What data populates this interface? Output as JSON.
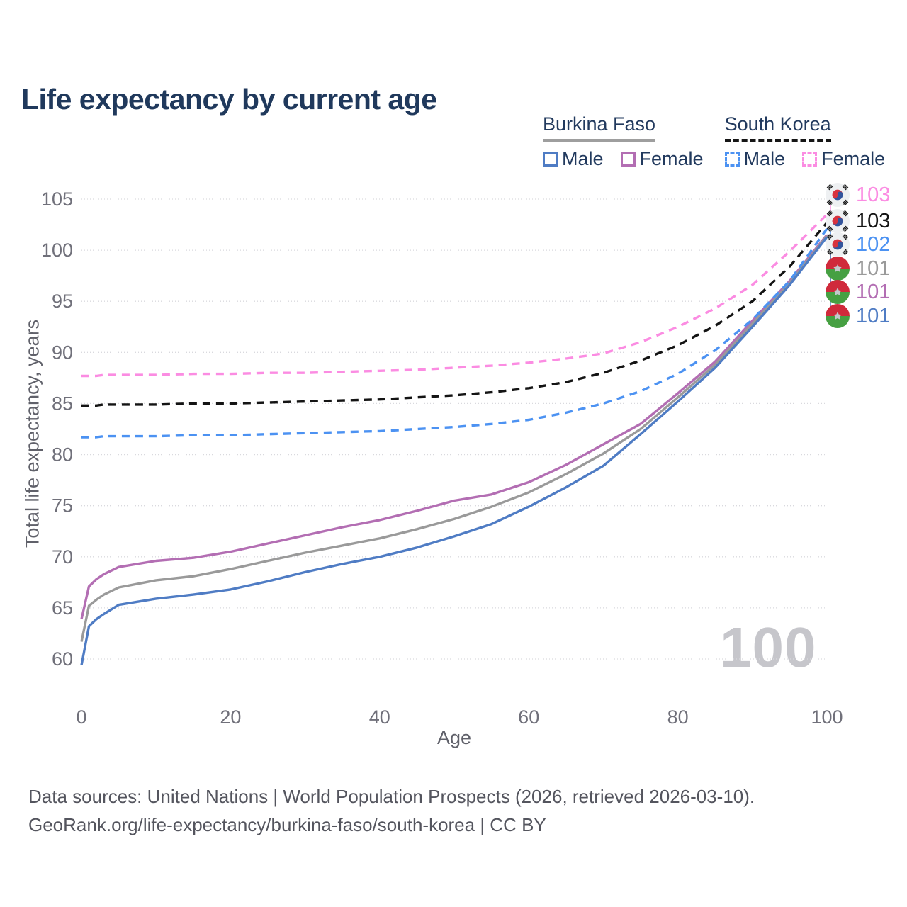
{
  "header": {
    "title": "Life expectancy by current age"
  },
  "legend": {
    "groups": [
      {
        "title": "Burkina Faso",
        "style": "solid",
        "items": [
          {
            "label": "Male",
            "color": "#4f7cc4"
          },
          {
            "label": "Female",
            "color": "#b36eb3"
          }
        ]
      },
      {
        "title": "South Korea",
        "style": "dashed",
        "items": [
          {
            "label": "Male",
            "color": "#4c92f2"
          },
          {
            "label": "Female",
            "color": "#fb8ce2"
          }
        ]
      }
    ]
  },
  "chart_data": {
    "type": "line",
    "title": "Life expectancy by current age",
    "xlabel": "Age",
    "ylabel": "Total life expectancy, years",
    "xlim": [
      0,
      100
    ],
    "ylim": [
      60,
      105
    ],
    "xticks": [
      0,
      20,
      40,
      60,
      80,
      100
    ],
    "yticks": [
      60,
      65,
      70,
      75,
      80,
      85,
      90,
      95,
      100,
      105
    ],
    "grid": true,
    "legend_position": "top-right",
    "x": [
      0,
      1,
      2,
      3,
      5,
      10,
      15,
      20,
      25,
      30,
      35,
      40,
      45,
      50,
      55,
      60,
      65,
      70,
      75,
      80,
      85,
      90,
      95,
      100
    ],
    "series": [
      {
        "name": "Burkina Faso Female",
        "country": "Burkina Faso",
        "sex": "Female",
        "color": "#b36eb3",
        "dash": "solid",
        "end_label": "101",
        "end_row": 4,
        "values": [
          63.9,
          67.1,
          67.8,
          68.3,
          69.0,
          69.6,
          69.9,
          70.5,
          71.3,
          72.1,
          72.9,
          73.6,
          74.5,
          75.5,
          76.1,
          77.3,
          79.0,
          81.0,
          83.0,
          86.0,
          89.1,
          93.1,
          97.0,
          101.5
        ]
      },
      {
        "name": "Burkina Faso",
        "country": "Burkina Faso",
        "sex": "Both",
        "color": "#9a9a9a",
        "dash": "solid",
        "end_label": "101",
        "end_row": 3,
        "values": [
          61.7,
          65.2,
          65.8,
          66.3,
          67.0,
          67.7,
          68.1,
          68.8,
          69.6,
          70.4,
          71.1,
          71.8,
          72.7,
          73.7,
          74.9,
          76.3,
          78.1,
          80.1,
          82.5,
          85.6,
          88.8,
          92.8,
          96.8,
          101.4
        ]
      },
      {
        "name": "Burkina Faso Male",
        "country": "Burkina Faso",
        "sex": "Male",
        "color": "#4f7cc4",
        "dash": "solid",
        "end_label": "101",
        "end_row": 5,
        "values": [
          59.4,
          63.2,
          63.9,
          64.4,
          65.3,
          65.9,
          66.3,
          66.8,
          67.6,
          68.5,
          69.3,
          70.0,
          70.9,
          72.0,
          73.2,
          74.9,
          76.8,
          78.9,
          82.0,
          85.2,
          88.5,
          92.5,
          96.6,
          101.3
        ]
      },
      {
        "name": "South Korea Male",
        "country": "South Korea",
        "sex": "Male",
        "color": "#4c92f2",
        "dash": "dashed",
        "end_label": "102",
        "end_row": 2,
        "values": [
          81.7,
          81.7,
          81.7,
          81.8,
          81.8,
          81.8,
          81.9,
          81.9,
          82.0,
          82.1,
          82.2,
          82.3,
          82.5,
          82.7,
          83.0,
          83.4,
          84.1,
          85.0,
          86.2,
          87.9,
          90.2,
          93.2,
          97.0,
          102.1
        ]
      },
      {
        "name": "South Korea",
        "country": "South Korea",
        "sex": "Both",
        "color": "#141414",
        "dash": "dashed",
        "end_label": "103",
        "end_row": 1,
        "values": [
          84.8,
          84.8,
          84.8,
          84.9,
          84.9,
          84.9,
          85.0,
          85.0,
          85.1,
          85.2,
          85.3,
          85.4,
          85.6,
          85.8,
          86.1,
          86.5,
          87.1,
          88.0,
          89.2,
          90.7,
          92.6,
          95.0,
          98.4,
          102.7
        ]
      },
      {
        "name": "South Korea Female",
        "country": "South Korea",
        "sex": "Female",
        "color": "#fb8ce2",
        "dash": "dashed",
        "end_label": "103",
        "end_row": 0,
        "values": [
          87.7,
          87.7,
          87.7,
          87.8,
          87.8,
          87.8,
          87.9,
          87.9,
          88.0,
          88.0,
          88.1,
          88.2,
          88.3,
          88.5,
          88.7,
          89.0,
          89.4,
          89.9,
          91.0,
          92.5,
          94.3,
          96.6,
          99.9,
          103.5
        ]
      }
    ]
  },
  "end_labels": [
    {
      "flag": "south-korea",
      "value": "103",
      "color": "#fb8ce2"
    },
    {
      "flag": "south-korea",
      "value": "103",
      "color": "#141414"
    },
    {
      "flag": "south-korea",
      "value": "102",
      "color": "#4c92f2"
    },
    {
      "flag": "burkina-faso",
      "value": "101",
      "color": "#9a9a9a"
    },
    {
      "flag": "burkina-faso",
      "value": "101",
      "color": "#b36eb3"
    },
    {
      "flag": "burkina-faso",
      "value": "101",
      "color": "#4f7cc4"
    }
  ],
  "watermark": {
    "value": "100"
  },
  "footer": {
    "line1": "Data sources: United Nations | World Population Prospects (2026, retrieved 2026-03-10).",
    "line2": "GeoRank.org/life-expectancy/burkina-faso/south-korea | CC BY"
  },
  "colors": {
    "title": "#20395c",
    "grid": "#d9d9de",
    "axis_text": "#70707a",
    "watermark": "#c6c6cb"
  }
}
